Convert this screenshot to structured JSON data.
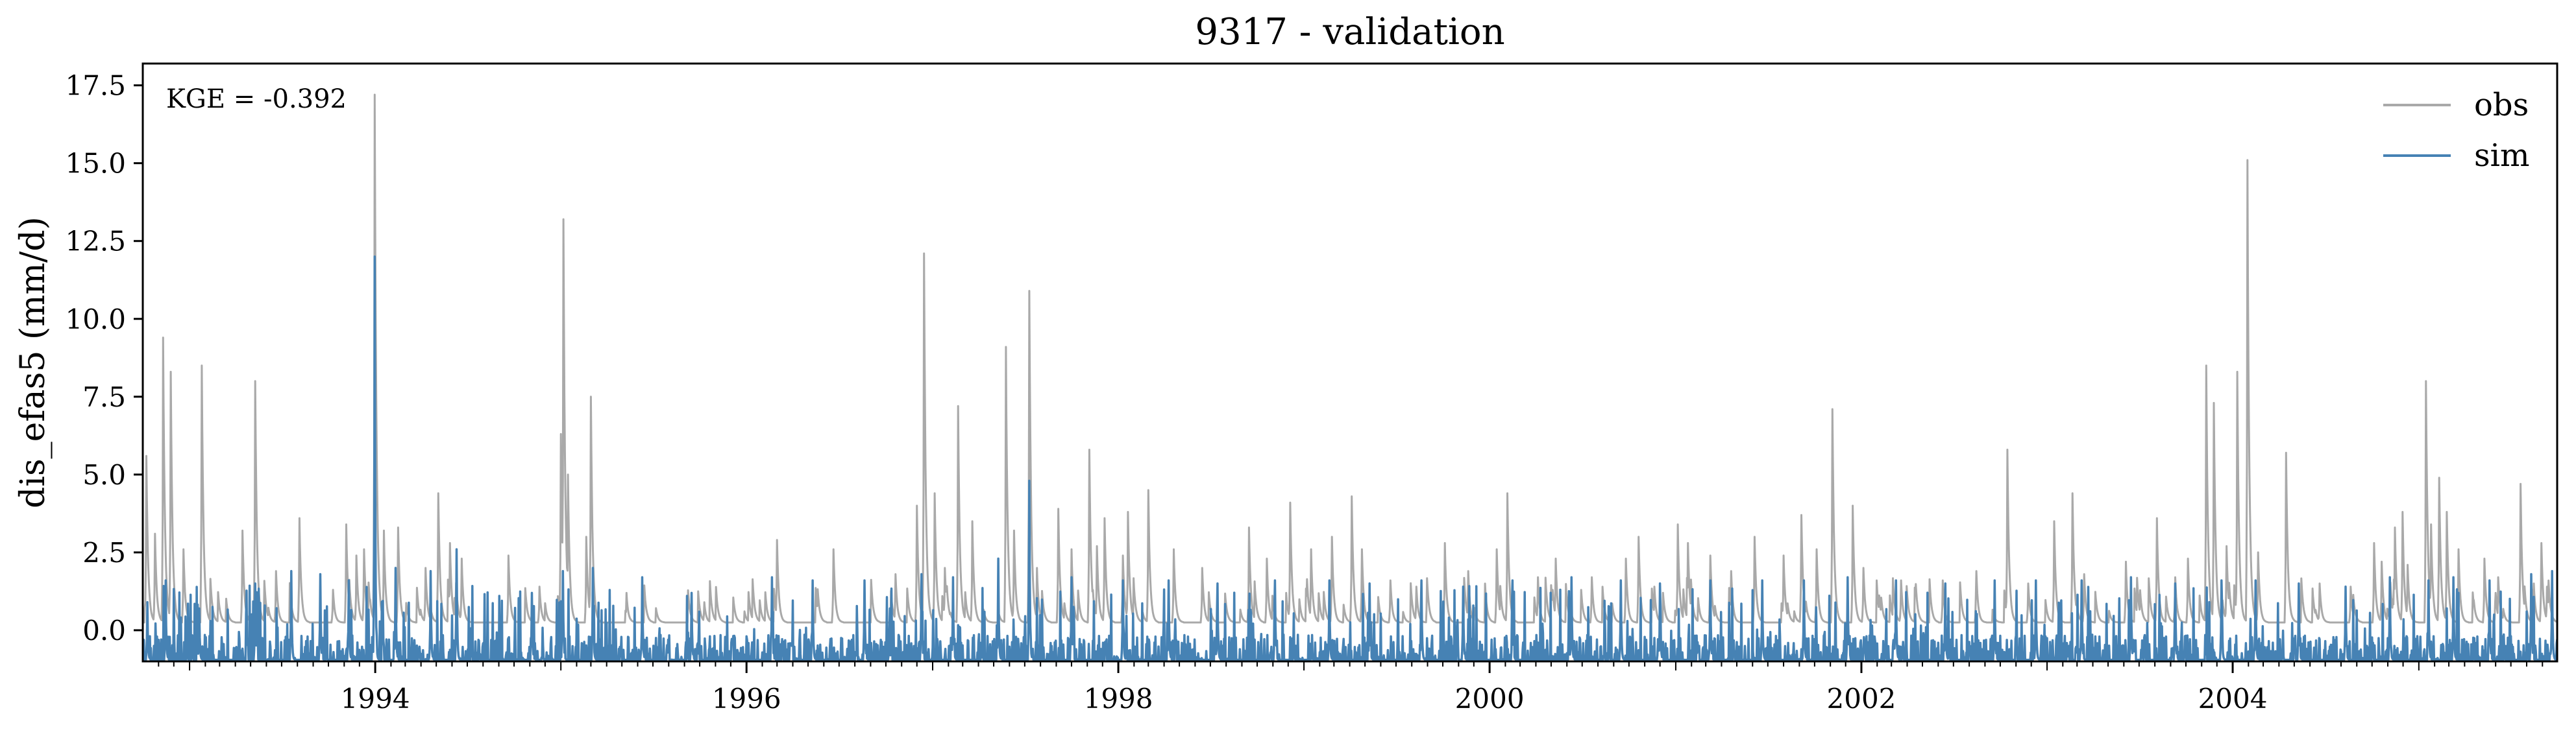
{
  "chart_data": {
    "type": "line",
    "title": "9317 - validation",
    "xlabel": "",
    "ylabel": "dis_efas5 (mm/d)",
    "annotation": "KGE = -0.392",
    "legend_position": "top-right",
    "grid": false,
    "xlim": [
      "1992-10-01",
      "2005-09-30"
    ],
    "ylim": [
      -1.0,
      18.2
    ],
    "x_ticks": [
      "1994",
      "1996",
      "1998",
      "2000",
      "2002",
      "2004"
    ],
    "x_tick_dates": [
      "1994-01-01",
      "1996-01-01",
      "1998-01-01",
      "2000-01-01",
      "2002-01-01",
      "2004-01-01"
    ],
    "y_ticks": [
      "0.0",
      "2.5",
      "5.0",
      "7.5",
      "10.0",
      "12.5",
      "15.0",
      "17.5"
    ],
    "y_tick_values": [
      0.0,
      2.5,
      5.0,
      7.5,
      10.0,
      12.5,
      15.0,
      17.5
    ],
    "series": [
      {
        "name": "obs",
        "color": "#a9a9a9",
        "baseline": 0.25,
        "peaks": [
          [
            "1992-10-08",
            5.6
          ],
          [
            "1992-10-25",
            3.1
          ],
          [
            "1992-11-10",
            9.4
          ],
          [
            "1992-11-25",
            8.3
          ],
          [
            "1992-12-20",
            2.6
          ],
          [
            "1993-01-25",
            8.5
          ],
          [
            "1993-04-15",
            3.2
          ],
          [
            "1993-05-10",
            8.0
          ],
          [
            "1993-06-20",
            1.9
          ],
          [
            "1993-08-05",
            3.6
          ],
          [
            "1993-10-10",
            1.3
          ],
          [
            "1993-11-05",
            3.4
          ],
          [
            "1993-11-25",
            2.4
          ],
          [
            "1993-12-10",
            2.6
          ],
          [
            "1993-12-31",
            17.2
          ],
          [
            "1994-01-18",
            3.2
          ],
          [
            "1994-02-15",
            3.3
          ],
          [
            "1994-04-10",
            2.0
          ],
          [
            "1994-05-05",
            4.4
          ],
          [
            "1994-05-28",
            2.8
          ],
          [
            "1994-06-20",
            2.3
          ],
          [
            "1994-09-20",
            2.4
          ],
          [
            "1994-11-20",
            1.4
          ],
          [
            "1995-01-01",
            6.3
          ],
          [
            "1995-01-06",
            13.2
          ],
          [
            "1995-01-15",
            5.0
          ],
          [
            "1995-02-20",
            3.0
          ],
          [
            "1995-03-01",
            7.5
          ],
          [
            "1995-05-10",
            1.2
          ],
          [
            "1995-10-10",
            0.9
          ],
          [
            "1996-01-15",
            0.9
          ],
          [
            "1996-03-01",
            2.9
          ],
          [
            "1996-06-20",
            2.6
          ],
          [
            "1996-10-20",
            1.8
          ],
          [
            "1996-12-01",
            4.0
          ],
          [
            "1996-12-15",
            12.1
          ],
          [
            "1997-01-05",
            4.4
          ],
          [
            "1997-01-25",
            2.0
          ],
          [
            "1997-02-20",
            7.2
          ],
          [
            "1997-03-20",
            3.5
          ],
          [
            "1997-05-25",
            9.1
          ],
          [
            "1997-06-10",
            3.2
          ],
          [
            "1997-07-10",
            10.9
          ],
          [
            "1997-07-25",
            2.0
          ],
          [
            "1997-09-05",
            3.9
          ],
          [
            "1997-10-01",
            2.6
          ],
          [
            "1997-11-05",
            5.8
          ],
          [
            "1997-11-20",
            2.7
          ],
          [
            "1997-12-05",
            3.6
          ],
          [
            "1998-01-10",
            2.4
          ],
          [
            "1998-01-20",
            3.8
          ],
          [
            "1998-03-01",
            4.5
          ],
          [
            "1998-04-20",
            2.6
          ],
          [
            "1998-06-15",
            2.0
          ],
          [
            "1998-09-15",
            3.3
          ],
          [
            "1998-10-20",
            2.3
          ],
          [
            "1998-12-05",
            4.1
          ],
          [
            "1999-01-15",
            2.6
          ],
          [
            "1999-02-25",
            3.0
          ],
          [
            "1999-04-05",
            4.3
          ],
          [
            "1999-04-25",
            2.6
          ],
          [
            "1999-06-20",
            1.6
          ],
          [
            "1999-08-10",
            1.4
          ],
          [
            "1999-10-05",
            2.8
          ],
          [
            "1999-11-20",
            1.9
          ],
          [
            "2000-01-15",
            2.6
          ],
          [
            "2000-02-05",
            4.4
          ],
          [
            "2000-04-05",
            1.7
          ],
          [
            "2000-05-10",
            2.3
          ],
          [
            "2000-07-20",
            1.7
          ],
          [
            "2000-09-25",
            2.3
          ],
          [
            "2000-10-20",
            3.0
          ],
          [
            "2000-11-20",
            1.4
          ],
          [
            "2001-01-05",
            3.4
          ],
          [
            "2001-01-25",
            2.8
          ],
          [
            "2001-03-10",
            2.4
          ],
          [
            "2001-04-20",
            1.9
          ],
          [
            "2001-06-05",
            3.0
          ],
          [
            "2001-08-01",
            2.4
          ],
          [
            "2001-09-05",
            3.7
          ],
          [
            "2001-10-05",
            2.6
          ],
          [
            "2001-11-05",
            7.1
          ],
          [
            "2001-12-15",
            4.0
          ],
          [
            "2002-01-05",
            2.0
          ],
          [
            "2002-03-20",
            1.6
          ],
          [
            "2002-06-10",
            1.6
          ],
          [
            "2002-08-15",
            1.9
          ],
          [
            "2002-10-15",
            5.8
          ],
          [
            "2002-11-25",
            1.5
          ],
          [
            "2003-01-15",
            3.5
          ],
          [
            "2003-02-20",
            4.4
          ],
          [
            "2003-03-15",
            1.8
          ],
          [
            "2003-06-05",
            2.2
          ],
          [
            "2003-08-05",
            3.6
          ],
          [
            "2003-09-10",
            1.7
          ],
          [
            "2003-10-05",
            2.3
          ],
          [
            "2003-11-10",
            8.5
          ],
          [
            "2003-11-25",
            7.3
          ],
          [
            "2003-12-20",
            2.7
          ],
          [
            "2004-01-10",
            8.3
          ],
          [
            "2004-01-30",
            15.1
          ],
          [
            "2004-02-20",
            2.5
          ],
          [
            "2004-04-15",
            5.7
          ],
          [
            "2004-06-20",
            1.5
          ],
          [
            "2004-08-20",
            1.4
          ],
          [
            "2004-10-05",
            2.8
          ],
          [
            "2004-10-20",
            2.2
          ],
          [
            "2004-11-15",
            3.3
          ],
          [
            "2004-11-30",
            3.8
          ],
          [
            "2004-12-10",
            2.1
          ],
          [
            "2005-01-15",
            8.0
          ],
          [
            "2005-01-25",
            3.4
          ],
          [
            "2005-02-10",
            4.9
          ],
          [
            "2005-02-25",
            3.8
          ],
          [
            "2005-03-20",
            2.6
          ],
          [
            "2005-05-10",
            2.3
          ],
          [
            "2005-06-01",
            1.2
          ],
          [
            "2005-07-20",
            4.7
          ],
          [
            "2005-08-15",
            1.5
          ],
          [
            "2005-08-30",
            2.8
          ],
          [
            "2005-09-10",
            1.4
          ]
        ]
      },
      {
        "name": "sim",
        "color": "#4682b4",
        "baseline": -0.95,
        "peaks": [
          [
            "1992-10-10",
            0.9
          ],
          [
            "1992-11-15",
            1.6
          ],
          [
            "1993-01-20",
            0.7
          ],
          [
            "1993-05-10",
            1.5
          ],
          [
            "1993-07-20",
            1.9
          ],
          [
            "1993-09-15",
            1.8
          ],
          [
            "1993-11-10",
            1.6
          ],
          [
            "1993-12-31",
            12.0
          ],
          [
            "1994-02-10",
            2.0
          ],
          [
            "1994-04-20",
            1.9
          ],
          [
            "1994-06-10",
            2.6
          ],
          [
            "1994-11-05",
            1.2
          ],
          [
            "1995-01-05",
            1.9
          ],
          [
            "1995-03-05",
            2.0
          ],
          [
            "1995-06-10",
            1.7
          ],
          [
            "1995-09-15",
            1.2
          ],
          [
            "1996-02-20",
            1.7
          ],
          [
            "1996-05-10",
            1.6
          ],
          [
            "1996-08-20",
            1.6
          ],
          [
            "1996-12-10",
            1.8
          ],
          [
            "1997-02-10",
            1.7
          ],
          [
            "1997-05-10",
            2.3
          ],
          [
            "1997-07-10",
            4.8
          ],
          [
            "1997-10-01",
            1.7
          ],
          [
            "1998-01-10",
            1.6
          ],
          [
            "1998-04-10",
            1.6
          ],
          [
            "1998-07-15",
            1.5
          ],
          [
            "1998-11-05",
            1.6
          ],
          [
            "1999-02-20",
            1.6
          ],
          [
            "1999-05-10",
            1.5
          ],
          [
            "1999-08-20",
            1.6
          ],
          [
            "1999-11-10",
            1.4
          ],
          [
            "2000-02-15",
            1.6
          ],
          [
            "2000-06-10",
            1.7
          ],
          [
            "2000-09-15",
            1.6
          ],
          [
            "2000-12-01",
            1.5
          ],
          [
            "2001-03-10",
            1.6
          ],
          [
            "2001-06-20",
            1.6
          ],
          [
            "2001-09-10",
            1.6
          ],
          [
            "2001-12-05",
            1.7
          ],
          [
            "2002-03-10",
            1.6
          ],
          [
            "2002-06-15",
            1.5
          ],
          [
            "2002-09-20",
            1.6
          ],
          [
            "2002-12-10",
            1.6
          ],
          [
            "2003-03-10",
            1.6
          ],
          [
            "2003-06-15",
            1.7
          ],
          [
            "2003-09-10",
            1.5
          ],
          [
            "2003-12-10",
            1.6
          ],
          [
            "2004-02-15",
            1.6
          ],
          [
            "2004-05-10",
            1.5
          ],
          [
            "2004-08-10",
            1.4
          ],
          [
            "2004-11-05",
            1.7
          ],
          [
            "2005-01-20",
            1.6
          ],
          [
            "2005-03-10",
            1.7
          ],
          [
            "2005-05-20",
            1.6
          ],
          [
            "2005-08-10",
            1.8
          ],
          [
            "2005-09-20",
            1.9
          ]
        ]
      }
    ]
  }
}
